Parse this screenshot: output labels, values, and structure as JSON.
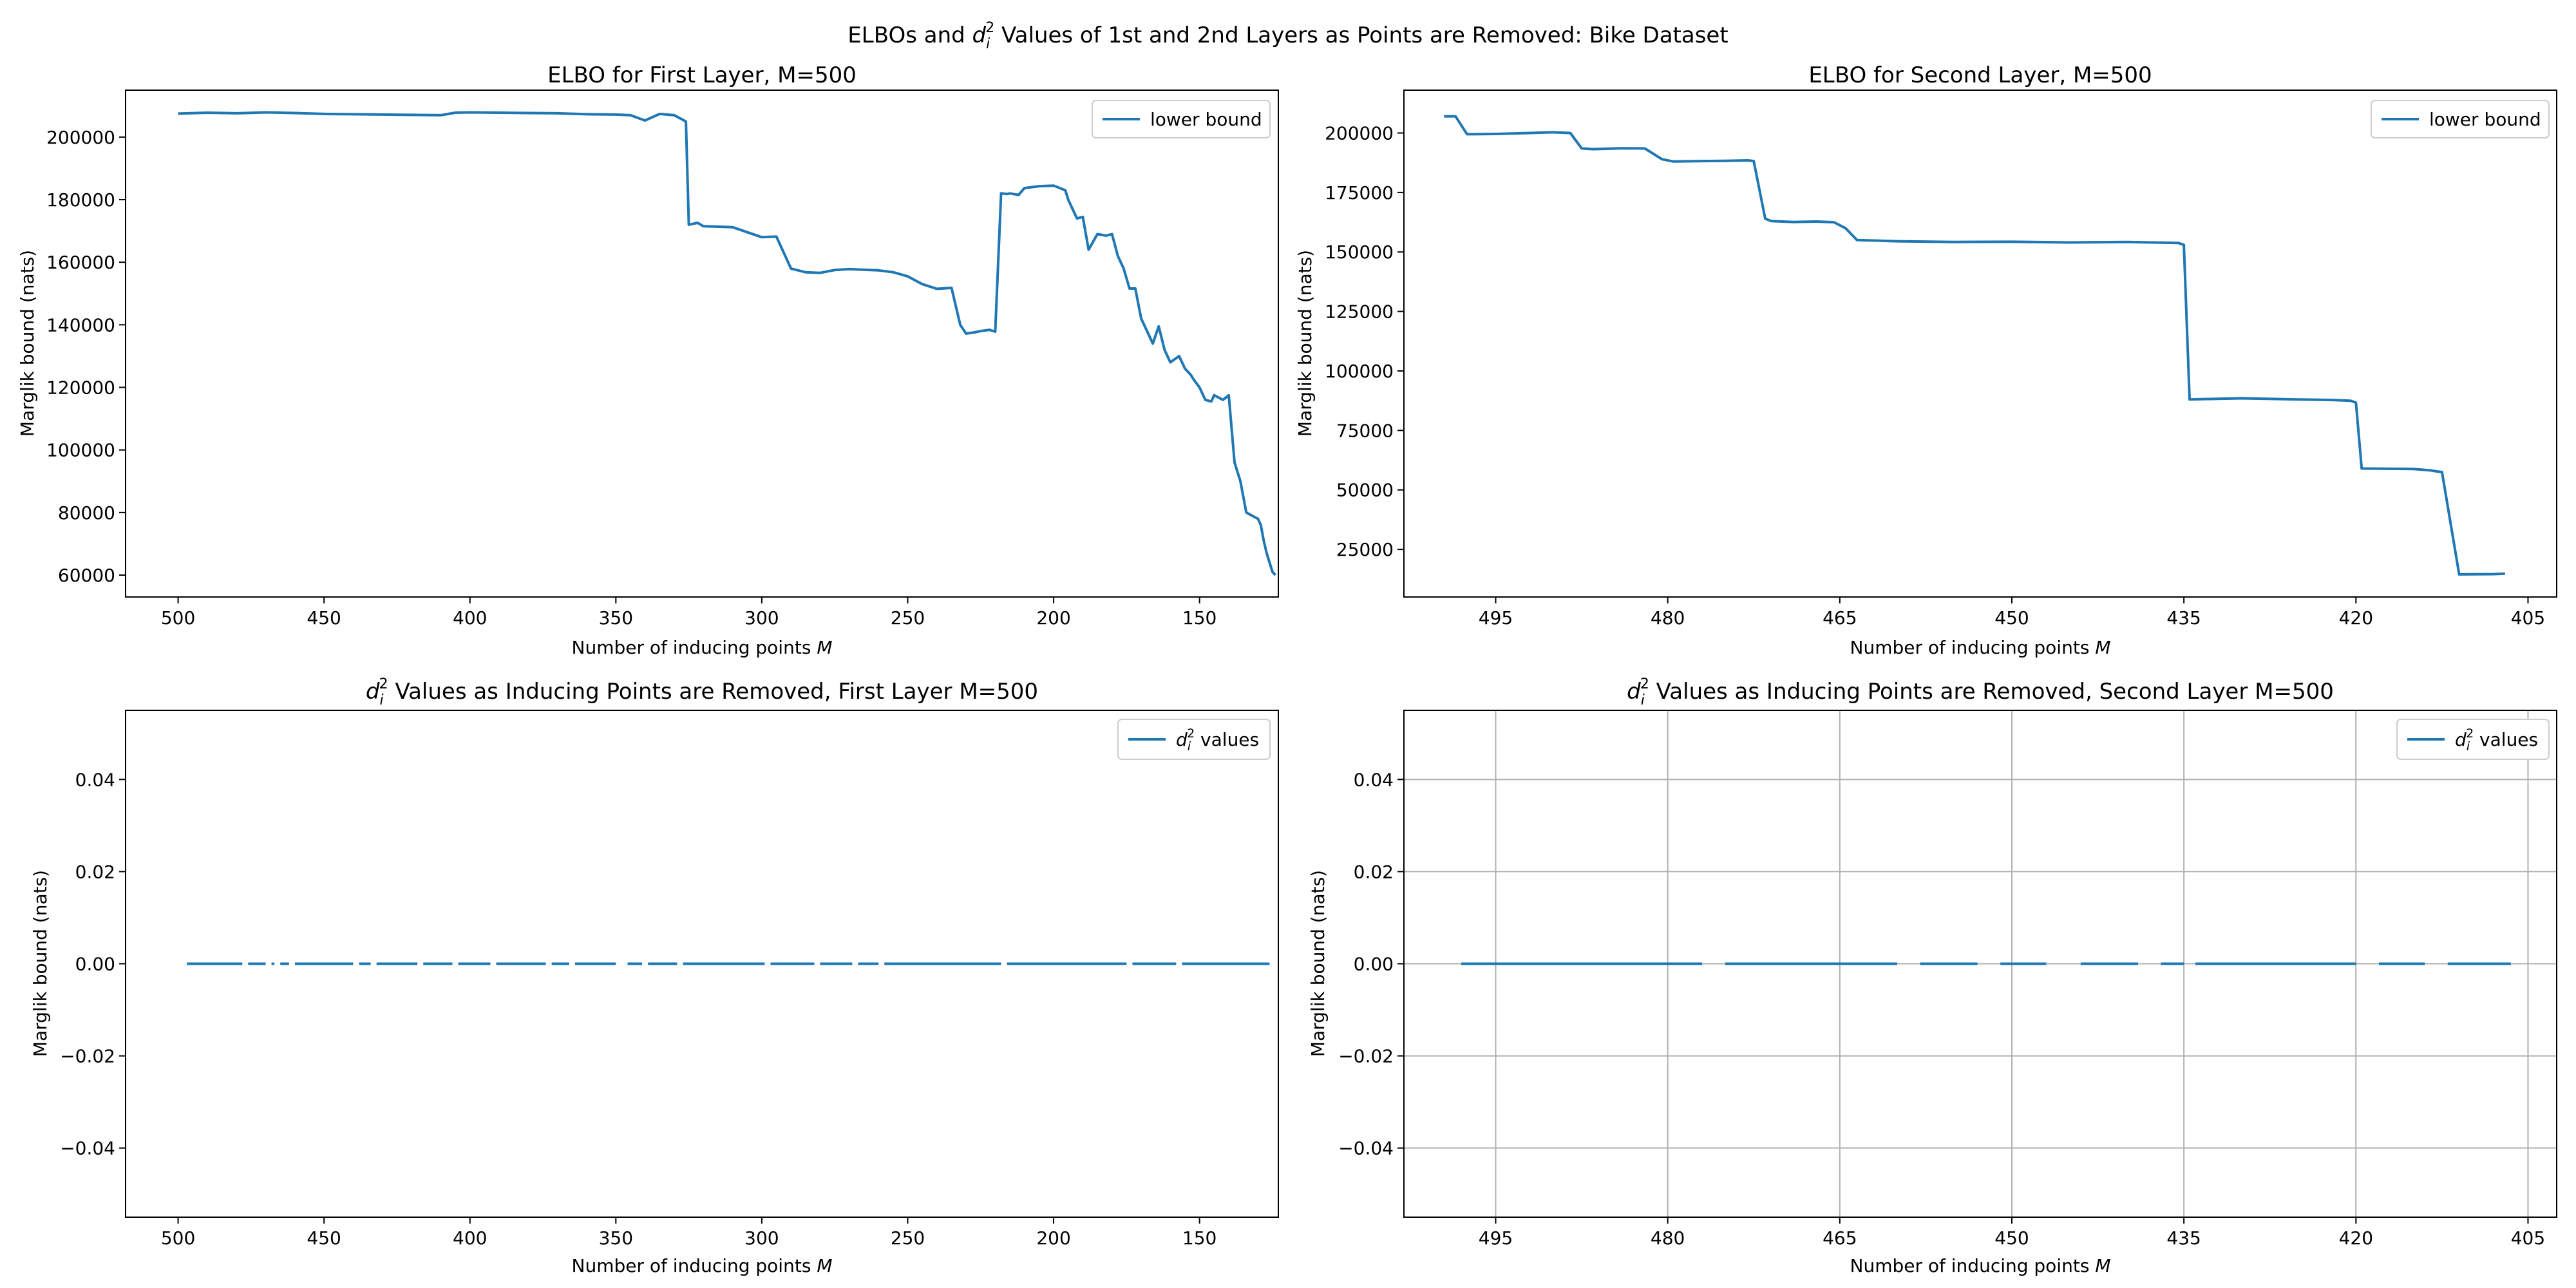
{
  "figure": {
    "title_prefix": "ELBOs and ",
    "title_symbol_base": "d",
    "title_symbol_sub": "i",
    "title_symbol_sup": "2",
    "title_suffix": " Values of 1st and 2nd Layers as Points are Removed: Bike Dataset"
  },
  "colors": {
    "line": "#1f77b4",
    "axes": "#000000",
    "grid": "#b0b0b0",
    "legend_border": "#cccccc"
  },
  "chart_data": [
    {
      "id": "p1",
      "type": "line",
      "title": "ELBO for First Layer, M=500",
      "xlabel": "Number of inducing points M",
      "ylabel": "Marglik bound (nats)",
      "xlim": [
        518,
        123
      ],
      "ylim": [
        53000,
        215000
      ],
      "xticks": [
        500,
        450,
        400,
        350,
        300,
        250,
        200,
        150
      ],
      "xtick_labels": [
        "500",
        "450",
        "400",
        "350",
        "300",
        "250",
        "200",
        "150"
      ],
      "yticks": [
        60000,
        80000,
        100000,
        120000,
        140000,
        160000,
        180000,
        200000
      ],
      "ytick_labels": [
        "60000",
        "80000",
        "100000",
        "120000",
        "140000",
        "160000",
        "180000",
        "200000"
      ],
      "grid": false,
      "legend_position": "top-right",
      "series": [
        {
          "name": "lower bound",
          "x": [
            500,
            490,
            480,
            470,
            460,
            450,
            440,
            430,
            420,
            410,
            405,
            400,
            390,
            380,
            370,
            360,
            350,
            345,
            340,
            335,
            330,
            326,
            325,
            322,
            320,
            310,
            300,
            295,
            290,
            288,
            285,
            280,
            275,
            270,
            265,
            260,
            255,
            250,
            245,
            240,
            235,
            232,
            230,
            227,
            225,
            222,
            220,
            218,
            216,
            215,
            212,
            210,
            205,
            200,
            196,
            195,
            192,
            190,
            188,
            185,
            182,
            180,
            178,
            176,
            174,
            172,
            170,
            168,
            166,
            164,
            162,
            160,
            157,
            155,
            153,
            152,
            150,
            148,
            146,
            145,
            142,
            140,
            138,
            136,
            134,
            132,
            130,
            129,
            128,
            127,
            126,
            125,
            124
          ],
          "y": [
            207500,
            207800,
            207600,
            207900,
            207700,
            207400,
            207300,
            207200,
            207100,
            207000,
            207800,
            207900,
            207800,
            207700,
            207600,
            207300,
            207200,
            207000,
            205300,
            207400,
            207000,
            205000,
            172000,
            172600,
            171500,
            171200,
            168000,
            168200,
            158000,
            157500,
            156800,
            156600,
            157500,
            157800,
            157600,
            157400,
            156800,
            155500,
            153000,
            151500,
            151800,
            140000,
            137200,
            137600,
            138000,
            138400,
            137800,
            182000,
            181800,
            182000,
            181500,
            183700,
            184300,
            184500,
            183000,
            180000,
            174000,
            174500,
            164000,
            169000,
            168500,
            169000,
            162000,
            158000,
            151600,
            151600,
            142000,
            138000,
            134000,
            139500,
            132000,
            128000,
            130000,
            126000,
            124000,
            122500,
            120000,
            116000,
            115500,
            117500,
            116000,
            117500,
            96000,
            90000,
            80000,
            79000,
            78000,
            76000,
            71000,
            67000,
            64000,
            61000,
            60000
          ]
        }
      ]
    },
    {
      "id": "p2",
      "type": "line",
      "title": "ELBO for Second Layer,  M=500",
      "xlabel": "Number of inducing points M",
      "ylabel": "Marglik bound (nats)",
      "xlim": [
        503,
        402.5
      ],
      "ylim": [
        5000,
        218000
      ],
      "xticks": [
        495,
        480,
        465,
        450,
        435,
        420,
        405
      ],
      "xtick_labels": [
        "495",
        "480",
        "465",
        "450",
        "435",
        "420",
        "405"
      ],
      "yticks": [
        25000,
        50000,
        75000,
        100000,
        125000,
        150000,
        175000,
        200000
      ],
      "ytick_labels": [
        "25000",
        "50000",
        "75000",
        "100000",
        "125000",
        "150000",
        "175000",
        "200000"
      ],
      "grid": false,
      "legend_position": "top-right",
      "series": [
        {
          "name": "lower bound",
          "x": [
            499.5,
            498.5,
            497.5,
            495,
            492,
            490,
            488.5,
            487.5,
            486.5,
            484,
            482,
            480.5,
            479.5,
            477,
            475,
            473,
            472.5,
            471.5,
            471,
            469,
            467,
            465.5,
            464.5,
            463.5,
            460,
            455,
            450,
            445,
            440,
            435.5,
            435,
            434.5,
            432,
            430,
            425,
            422,
            420.5,
            420,
            419.5,
            415,
            413.5,
            413,
            412.5,
            411,
            408,
            407
          ],
          "y": [
            207000,
            207000,
            199500,
            199600,
            200000,
            200300,
            200000,
            193500,
            193200,
            193600,
            193500,
            189000,
            188000,
            188200,
            188300,
            188500,
            188200,
            164000,
            163000,
            162600,
            162800,
            162500,
            160000,
            155000,
            154500,
            154200,
            154300,
            154000,
            154200,
            153800,
            153000,
            88000,
            88300,
            88500,
            88000,
            87800,
            87500,
            86700,
            59000,
            58800,
            58200,
            57800,
            57500,
            14500,
            14600,
            14800
          ]
        }
      ]
    },
    {
      "id": "p3",
      "type": "line",
      "title_prefix": "",
      "title_symbol_base": "d",
      "title_symbol_sub": "i",
      "title_symbol_sup": "2",
      "title_suffix": " Values as Inducing Points are Removed, First Layer  M=500",
      "xlabel": "Number of inducing points M",
      "ylabel": "Marglik bound (nats)",
      "xlim": [
        518,
        123
      ],
      "ylim": [
        -0.055,
        0.055
      ],
      "xticks": [
        500,
        450,
        400,
        350,
        300,
        250,
        200,
        150
      ],
      "xtick_labels": [
        "500",
        "450",
        "400",
        "350",
        "300",
        "250",
        "200",
        "150"
      ],
      "yticks": [
        -0.04,
        -0.02,
        0.0,
        0.02,
        0.04
      ],
      "ytick_labels": [
        "−0.04",
        "−0.02",
        "0.00",
        "0.02",
        "0.04"
      ],
      "grid": false,
      "legend_position": "top-right",
      "series": [
        {
          "name_base": "d",
          "name_sub": "i",
          "name_sup": "2",
          "name_suffix": " values",
          "y_constant": 0.0,
          "segments": [
            [
              497,
              478
            ],
            [
              476,
              470
            ],
            [
              468,
              467
            ],
            [
              465,
              462
            ],
            [
              460,
              440
            ],
            [
              438,
              434
            ],
            [
              432,
              418
            ],
            [
              416,
              406
            ],
            [
              404,
              393
            ],
            [
              391,
              374
            ],
            [
              372,
              366
            ],
            [
              364,
              350
            ],
            [
              346,
              341
            ],
            [
              339,
              329
            ],
            [
              327,
              299
            ],
            [
              297,
              282
            ],
            [
              280,
              269
            ],
            [
              267,
              260
            ],
            [
              258,
              218
            ],
            [
              216,
              175
            ],
            [
              173,
              158
            ],
            [
              156,
              126
            ]
          ]
        }
      ]
    },
    {
      "id": "p4",
      "type": "line",
      "title_prefix": "",
      "title_symbol_base": "d",
      "title_symbol_sub": "i",
      "title_symbol_sup": "2",
      "title_suffix": " Values as Inducing Points are Removed, Second Layer  M=500",
      "xlabel": "Number of inducing points M",
      "ylabel": "Marglik bound (nats)",
      "xlim": [
        503,
        402.5
      ],
      "ylim": [
        -0.055,
        0.055
      ],
      "xticks": [
        495,
        480,
        465,
        450,
        435,
        420,
        405
      ],
      "xtick_labels": [
        "495",
        "480",
        "465",
        "450",
        "435",
        "420",
        "405"
      ],
      "yticks": [
        -0.04,
        -0.02,
        0.0,
        0.02,
        0.04
      ],
      "ytick_labels": [
        "−0.04",
        "−0.02",
        "0.00",
        "0.02",
        "0.04"
      ],
      "grid": true,
      "legend_position": "top-right",
      "series": [
        {
          "name_base": "d",
          "name_sub": "i",
          "name_sup": "2",
          "name_suffix": " values",
          "y_constant": 0.0,
          "segments": [
            [
              498,
              477
            ],
            [
              475,
              460
            ],
            [
              458,
              453
            ],
            [
              451,
              447
            ],
            [
              444,
              439
            ],
            [
              437,
              435
            ],
            [
              434,
              420
            ],
            [
              418,
              414
            ],
            [
              412,
              406.5
            ]
          ]
        }
      ]
    }
  ]
}
